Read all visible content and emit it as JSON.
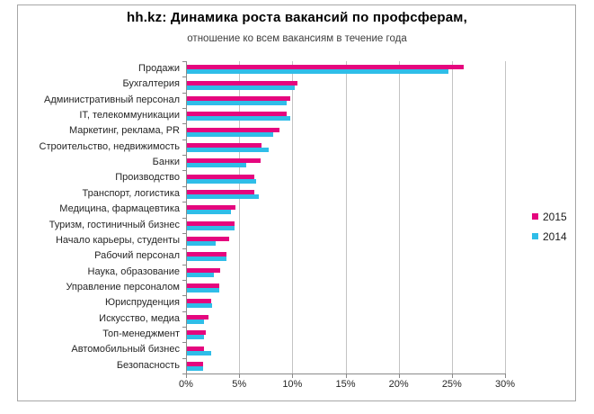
{
  "header": {
    "title": "hh.kz: Динамика роста вакансий по профсферам,",
    "subtitle": "отношение ко всем вакансиям в течение года"
  },
  "chart_data": {
    "type": "bar",
    "orientation": "horizontal",
    "title": "hh.kz: Динамика роста вакансий по профсферам,",
    "subtitle": "отношение ко всем вакансиям в течение года",
    "categories": [
      "Продажи",
      "Бухгалтерия",
      "Административный персонал",
      "IT, телекоммуникации",
      "Маркетинг, реклама, PR",
      "Строительство, недвижимость",
      "Банки",
      "Производство",
      "Транспорт, логистика",
      "Медицина, фармацевтика",
      "Туризм, гостиничный бизнес",
      "Начало карьеры, студенты",
      "Рабочий персонал",
      "Наука, образование",
      "Управление персоналом",
      "Юриспруденция",
      "Искусство, медиа",
      "Топ-менеджмент",
      "Автомобильный бизнес",
      "Безопасность"
    ],
    "series": [
      {
        "name": "2015",
        "color": "#e5067e",
        "values": [
          26.0,
          10.4,
          9.7,
          9.4,
          8.7,
          7.0,
          6.9,
          6.3,
          6.3,
          4.6,
          4.5,
          4.0,
          3.7,
          3.1,
          3.0,
          2.3,
          2.0,
          1.8,
          1.6,
          1.5
        ]
      },
      {
        "name": "2014",
        "color": "#2fbde8",
        "values": [
          24.6,
          10.1,
          9.4,
          9.7,
          8.1,
          7.7,
          5.6,
          6.5,
          6.8,
          4.1,
          4.5,
          2.7,
          3.7,
          2.5,
          3.0,
          2.4,
          1.6,
          1.6,
          2.3,
          1.5
        ]
      }
    ],
    "xlabel": "",
    "ylabel": "",
    "x_ticks": [
      "0%",
      "5%",
      "10%",
      "15%",
      "20%",
      "25%",
      "30%"
    ],
    "xlim": [
      0,
      30
    ],
    "grid": true,
    "legend_position": "right"
  },
  "colors": {
    "gridline": "#c3c3c3",
    "axis": "#8a8a8a",
    "frame_border": "#a6a6a6",
    "title_text": "#000000",
    "label_text": "#262626"
  }
}
